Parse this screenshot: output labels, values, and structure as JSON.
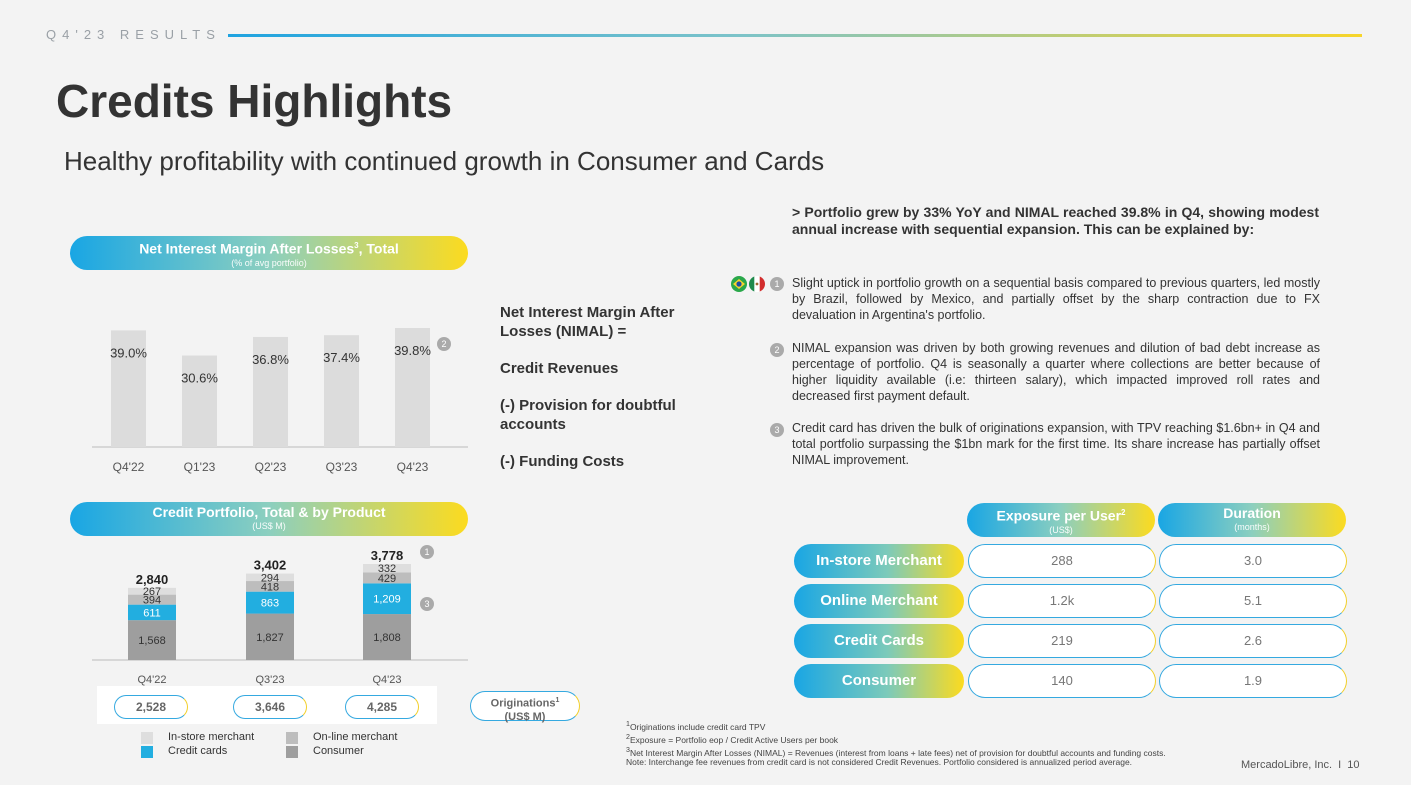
{
  "header": {
    "section": "Q4'23 RESULTS",
    "title": "Credits Highlights",
    "subtitle": "Healthy profitability with continued growth in Consumer and Cards"
  },
  "nimal_chart": {
    "title": "Net Interest Margin After Losses",
    "title_sup": "3",
    "title_suffix": ", Total",
    "unit": "(% of avg portfolio)",
    "badge": "2"
  },
  "portfolio_chart": {
    "title": "Credit Portfolio, Total & by Product",
    "unit": "(US$ M)",
    "badge_top": "1",
    "badge_mid": "3",
    "originations": {
      "label": "Originations",
      "sup": "1",
      "unit": "(US$ M)",
      "values": [
        "2,528",
        "3,646",
        "4,285"
      ]
    },
    "legend": [
      "In-store merchant",
      "On-line merchant",
      "Credit cards",
      "Consumer"
    ]
  },
  "chart_data": [
    {
      "type": "bar",
      "categories": [
        "Q4'22",
        "Q1'23",
        "Q2'23",
        "Q3'23",
        "Q4'23"
      ],
      "values": [
        39.0,
        30.6,
        36.8,
        37.4,
        39.8
      ],
      "labels": [
        "39.0%",
        "30.6%",
        "36.8%",
        "37.4%",
        "39.8%"
      ],
      "ylim": [
        0,
        45
      ]
    },
    {
      "type": "bar",
      "stacked": true,
      "categories": [
        "Q4'22",
        "Q3'23",
        "Q4'23"
      ],
      "totals": [
        "2,840",
        "3,402",
        "3,778"
      ],
      "series": [
        {
          "name": "Consumer",
          "color": "#9e9e9e",
          "values": [
            1568,
            1827,
            1808
          ],
          "labels": [
            "1,568",
            "1,827",
            "1,808"
          ]
        },
        {
          "name": "Credit cards",
          "color": "#22aee0",
          "values": [
            611,
            863,
            1209
          ],
          "labels": [
            "611",
            "863",
            "1,209"
          ]
        },
        {
          "name": "On-line merchant",
          "color": "#bdbdbd",
          "values": [
            394,
            418,
            429
          ],
          "labels": [
            "394",
            "418",
            "429"
          ]
        },
        {
          "name": "In-store merchant",
          "color": "#dedede",
          "values": [
            267,
            294,
            332
          ],
          "labels": [
            "267",
            "294",
            "332"
          ]
        }
      ]
    }
  ],
  "nimal_formula": [
    "Net Interest Margin After Losses (NIMAL) =",
    "Credit Revenues",
    "(-) Provision for doubtful accounts",
    "(-) Funding Costs"
  ],
  "commentary": {
    "headline": "> Portfolio grew by 33% YoY and NIMAL reached 39.8% in Q4, showing modest annual increase with sequential expansion. This can be explained by:",
    "bullets": [
      {
        "n": "1",
        "text": "Slight uptick in portfolio growth on a sequential basis compared to previous quarters, led mostly by Brazil, followed by Mexico, and partially offset by the sharp contraction due to FX devaluation in Argentina's portfolio."
      },
      {
        "n": "2",
        "text": "NIMAL expansion was driven by both growing revenues and dilution of bad debt increase as percentage of portfolio. Q4 is seasonally a quarter where collections are better because of higher liquidity available (i.e: thirteen salary), which impacted improved roll rates and decreased first payment default."
      },
      {
        "n": "3",
        "text": "Credit card has driven the bulk of originations expansion, with TPV reaching $1.6bn+ in Q4 and total portfolio surpassing the $1bn mark for the first time. Its share increase has partially offset NIMAL improvement."
      }
    ]
  },
  "exposure_table": {
    "col1": {
      "title": "Exposure per User",
      "sup": "2",
      "unit": "(US$)"
    },
    "col2": {
      "title": "Duration",
      "unit": "(months)"
    },
    "rows": [
      {
        "label": "In-store Merchant",
        "exposure": "288",
        "duration": "3.0"
      },
      {
        "label": "Online Merchant",
        "exposure": "1.2k",
        "duration": "5.1"
      },
      {
        "label": "Credit Cards",
        "exposure": "219",
        "duration": "2.6"
      },
      {
        "label": "Consumer",
        "exposure": "140",
        "duration": "1.9"
      }
    ]
  },
  "footnotes": [
    {
      "sup": "1",
      "text": "Originations include credit card TPV"
    },
    {
      "sup": "2",
      "text": "Exposure = Portfolio eop / Credit Active Users per book"
    },
    {
      "sup": "3",
      "text": "Net Interest Margin After Losses (NIMAL) = Revenues (interest from loans + late fees) net of provision for doubtful accounts and funding costs. Note: Interchange fee revenues from credit card is not considered Credit Revenues. Portfolio considered is annualized period average."
    }
  ],
  "footer": {
    "company": "MercadoLibre, Inc.",
    "separator": "I",
    "page": "10"
  },
  "colors": {
    "accent_blue": "#19a6e4",
    "accent_yellow": "#fcdb1f"
  }
}
